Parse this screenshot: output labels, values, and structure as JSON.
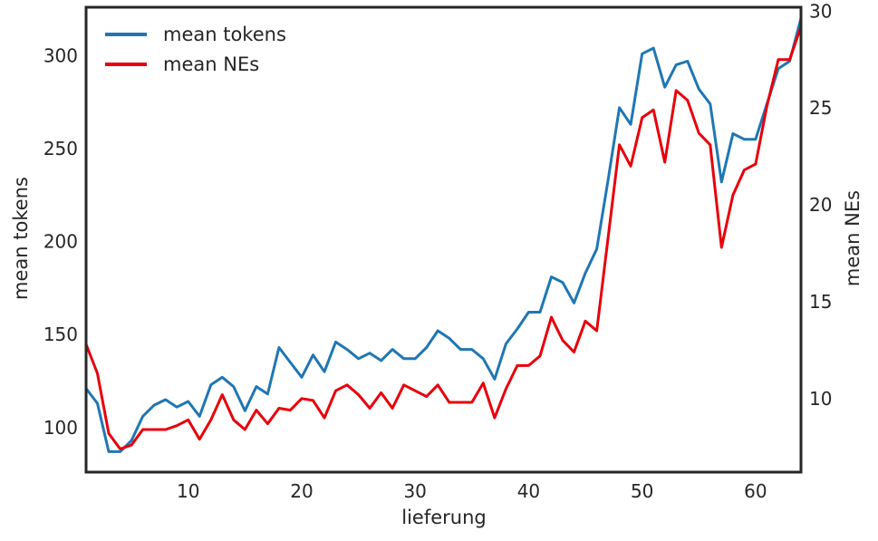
{
  "chart_data": {
    "type": "line",
    "xlabel": "lieferung",
    "ylabel_left": "mean tokens",
    "ylabel_right": "mean NEs",
    "xlim": [
      1,
      64
    ],
    "ylim_left": [
      76,
      326
    ],
    "ylim_right": [
      6.2,
      30.2
    ],
    "xticks": [
      10,
      20,
      30,
      40,
      50,
      60
    ],
    "yticks_left": [
      100,
      150,
      200,
      250,
      300
    ],
    "yticks_right": [
      10,
      15,
      20,
      25,
      30
    ],
    "grid": false,
    "legend_position": "top-left",
    "x": [
      1,
      2,
      3,
      4,
      5,
      6,
      7,
      8,
      9,
      10,
      11,
      12,
      13,
      14,
      15,
      16,
      17,
      18,
      19,
      20,
      21,
      22,
      23,
      24,
      25,
      26,
      27,
      28,
      29,
      30,
      31,
      32,
      33,
      34,
      35,
      36,
      37,
      38,
      39,
      40,
      41,
      42,
      43,
      44,
      45,
      46,
      47,
      48,
      49,
      50,
      51,
      52,
      53,
      54,
      55,
      56,
      57,
      58,
      59,
      60,
      61,
      62,
      63,
      64
    ],
    "series": [
      {
        "name": "mean tokens",
        "axis": "left",
        "color": "#1f77b4",
        "values": [
          121,
          113,
          87,
          87,
          93,
          106,
          112,
          115,
          111,
          114,
          106,
          123,
          127,
          122,
          109,
          122,
          118,
          143,
          135,
          127,
          139,
          130,
          146,
          142,
          137,
          140,
          136,
          142,
          137,
          137,
          143,
          152,
          148,
          142,
          142,
          137,
          126,
          145,
          153,
          162,
          162,
          181,
          178,
          167,
          183,
          196,
          233,
          272,
          263,
          301,
          304,
          283,
          295,
          297,
          282,
          274,
          232,
          258,
          255,
          255,
          274,
          293,
          297,
          320
        ]
      },
      {
        "name": "mean NEs",
        "axis": "right",
        "color": "#e8000b",
        "values": [
          12.8,
          11.3,
          8.2,
          7.4,
          7.6,
          8.4,
          8.4,
          8.4,
          8.6,
          8.9,
          7.9,
          8.9,
          10.2,
          8.9,
          8.4,
          9.4,
          8.7,
          9.5,
          9.4,
          10.0,
          9.9,
          9.0,
          10.4,
          10.7,
          10.2,
          9.5,
          10.3,
          9.5,
          10.7,
          10.4,
          10.1,
          10.7,
          9.8,
          9.8,
          9.8,
          10.8,
          9.0,
          10.5,
          11.7,
          11.7,
          12.2,
          14.2,
          13.0,
          12.4,
          14.0,
          13.5,
          18.3,
          23.1,
          22.0,
          24.5,
          24.9,
          22.2,
          25.9,
          25.4,
          23.7,
          23.1,
          17.8,
          20.5,
          21.8,
          22.1,
          25.1,
          27.5,
          27.5,
          29.2
        ]
      }
    ]
  }
}
